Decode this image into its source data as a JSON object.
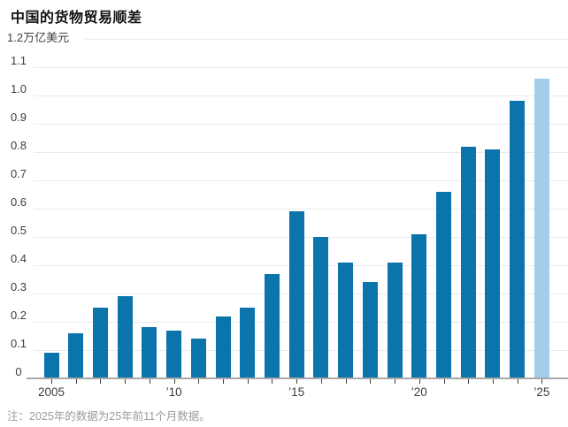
{
  "title": "中国的货物贸易顺差",
  "footnote": "注：2025年的数据为25年前11个月数据。",
  "axis": {
    "unit_label": "1.2万亿美元",
    "ytick_labels": [
      "0",
      "0.1",
      "0.2",
      "0.3",
      "0.4",
      "0.5",
      "0.6",
      "0.7",
      "0.8",
      "0.9",
      "1.0",
      "1.1"
    ]
  },
  "colors": {
    "bar": "#0b74ab",
    "bar_estimate": "#a5cce9",
    "gridline": "#eaeaea",
    "axis_line": "#a8a8a8",
    "text": "#3d3d3d",
    "footnote": "#9b9b9b"
  },
  "chart_data": {
    "type": "bar",
    "title": "中国的货物贸易顺差",
    "unit": "万亿美元",
    "categories": [
      "2005",
      "2006",
      "2007",
      "2008",
      "2009",
      "2010",
      "2011",
      "2012",
      "2013",
      "2014",
      "2015",
      "2016",
      "2017",
      "2018",
      "2019",
      "2020",
      "2021",
      "2022",
      "2023",
      "2024",
      "2025"
    ],
    "values": [
      0.09,
      0.16,
      0.25,
      0.29,
      0.18,
      0.17,
      0.14,
      0.22,
      0.25,
      0.37,
      0.59,
      0.5,
      0.41,
      0.34,
      0.41,
      0.51,
      0.66,
      0.82,
      0.81,
      0.98,
      1.06
    ],
    "estimate_category": "2025",
    "ylim": [
      0,
      1.2
    ],
    "ytick_step": 0.1,
    "grid": "horizontal",
    "legend": "none",
    "xticks": [
      {
        "category": "2005",
        "label": "2005"
      },
      {
        "category": "2010",
        "label": "’10"
      },
      {
        "category": "2015",
        "label": "’15"
      },
      {
        "category": "2020",
        "label": "’20"
      },
      {
        "category": "2025",
        "label": "’25"
      }
    ]
  }
}
